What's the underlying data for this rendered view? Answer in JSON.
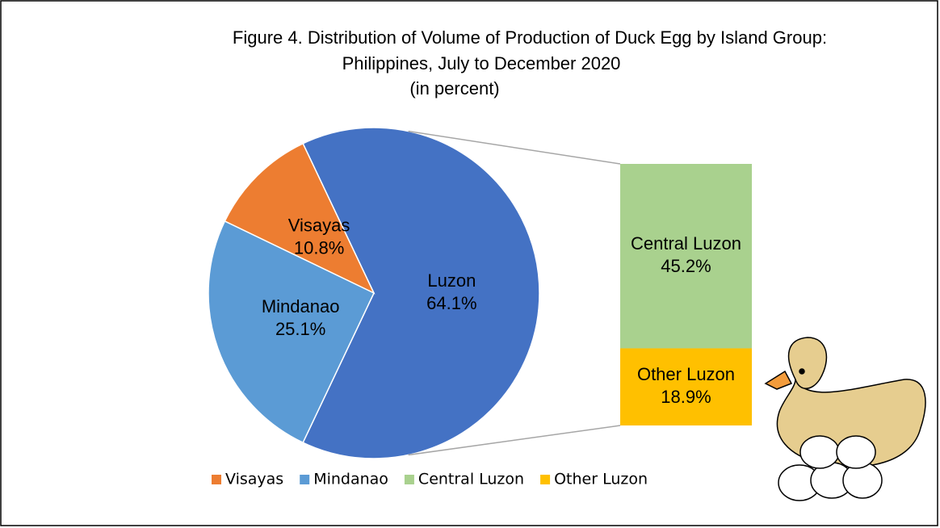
{
  "chart_data": {
    "type": "pie",
    "title": "Figure 4.  Distribution of Volume of Production of Duck Egg by Island Group:",
    "subtitle": "Philippines, July to December 2020",
    "unit_note": "(in percent)",
    "categories": [
      "Luzon",
      "Visayas",
      "Mindanao"
    ],
    "values": [
      64.1,
      10.8,
      25.1
    ],
    "value_labels": [
      "64.1%",
      "10.8%",
      "25.1%"
    ],
    "colors": [
      "#4472c4",
      "#ed7d31",
      "#5b9bd5"
    ],
    "breakout": {
      "categories": [
        "Central Luzon",
        "Other Luzon"
      ],
      "values": [
        45.2,
        18.9
      ],
      "value_labels": [
        "45.2%",
        "18.9%"
      ],
      "colors": [
        "#a9d18e",
        "#ffc000"
      ]
    },
    "legend": "bottom"
  }
}
